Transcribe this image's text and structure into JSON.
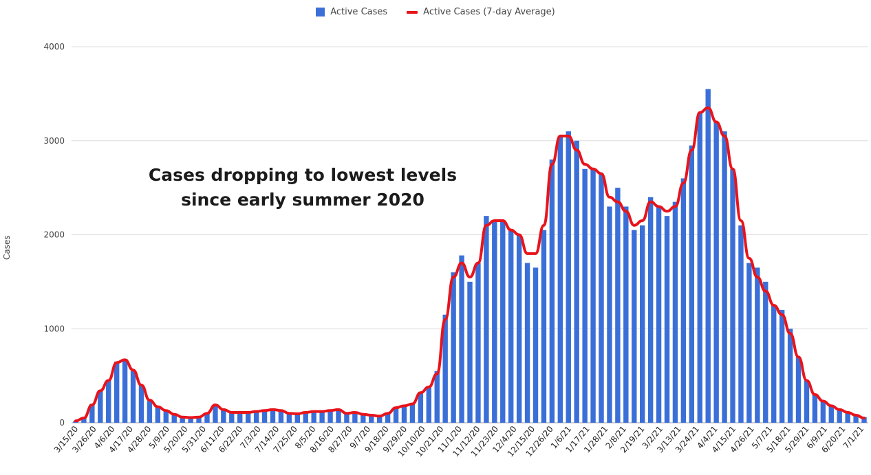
{
  "chart_data": {
    "type": "bar",
    "title": "",
    "xlabel": "",
    "ylabel": "Cases",
    "ylim": [
      0,
      4000
    ],
    "y_ticks": [
      0,
      1000,
      2000,
      3000,
      4000
    ],
    "grid": true,
    "legend_position": "top-center",
    "annotation": [
      "Cases dropping to lowest levels",
      "since early summer 2020"
    ],
    "x_tick_labels": [
      "3/15/20",
      "3/26/20",
      "4/6/20",
      "4/17/20",
      "4/28/20",
      "5/9/20",
      "5/20/20",
      "5/31/20",
      "6/11/20",
      "6/22/20",
      "7/3/20",
      "7/14/20",
      "7/25/20",
      "8/5/20",
      "8/16/20",
      "8/27/20",
      "9/7/20",
      "9/18/20",
      "9/29/20",
      "10/10/20",
      "10/21/20",
      "11/1/20",
      "11/12/20",
      "11/23/20",
      "12/4/20",
      "12/15/20",
      "12/26/20",
      "1/6/21",
      "1/17/21",
      "1/28/21",
      "2/8/21",
      "2/19/21",
      "3/2/21",
      "3/13/21",
      "3/24/21",
      "4/4/21",
      "4/15/21",
      "4/26/21",
      "5/7/21",
      "5/18/21",
      "5/29/21",
      "6/9/21",
      "6/20/21",
      "7/1/21"
    ],
    "series": [
      {
        "name": "Active Cases",
        "kind": "bar",
        "color": "#3b6fd8",
        "values": [
          20,
          50,
          200,
          350,
          450,
          650,
          680,
          550,
          400,
          230,
          180,
          130,
          90,
          60,
          55,
          60,
          100,
          180,
          140,
          110,
          110,
          110,
          120,
          130,
          140,
          130,
          100,
          95,
          110,
          120,
          120,
          130,
          140,
          100,
          110,
          90,
          80,
          70,
          100,
          150,
          190,
          200,
          330,
          380,
          550,
          1150,
          1600,
          1780,
          1500,
          1700,
          2200,
          2150,
          2150,
          2050,
          2000,
          1700,
          1650,
          2050,
          2800,
          3050,
          3100,
          3000,
          2700,
          2700,
          2650,
          2300,
          2500,
          2300,
          2050,
          2100,
          2400,
          2300,
          2200,
          2350,
          2600,
          2950,
          3300,
          3550,
          3200,
          3100,
          2700,
          2100,
          1700,
          1650,
          1500,
          1250,
          1200,
          1000,
          700,
          450,
          300,
          230,
          180,
          140,
          110,
          80,
          60
        ]
      },
      {
        "name": "Active Cases (7-day Average)",
        "kind": "line",
        "color": "#e8141b",
        "values": [
          20,
          50,
          190,
          340,
          450,
          640,
          670,
          560,
          400,
          240,
          170,
          130,
          90,
          60,
          55,
          60,
          100,
          190,
          140,
          110,
          110,
          110,
          120,
          130,
          140,
          130,
          100,
          95,
          110,
          120,
          120,
          130,
          140,
          100,
          110,
          90,
          80,
          70,
          100,
          160,
          180,
          200,
          320,
          380,
          520,
          1100,
          1550,
          1700,
          1550,
          1700,
          2100,
          2150,
          2150,
          2050,
          2000,
          1800,
          1800,
          2100,
          2750,
          3050,
          3050,
          2900,
          2750,
          2700,
          2650,
          2400,
          2350,
          2250,
          2100,
          2150,
          2350,
          2300,
          2250,
          2300,
          2550,
          2900,
          3300,
          3350,
          3200,
          3050,
          2700,
          2150,
          1750,
          1550,
          1400,
          1250,
          1150,
          950,
          700,
          450,
          300,
          230,
          180,
          140,
          110,
          80,
          50
        ]
      }
    ]
  }
}
